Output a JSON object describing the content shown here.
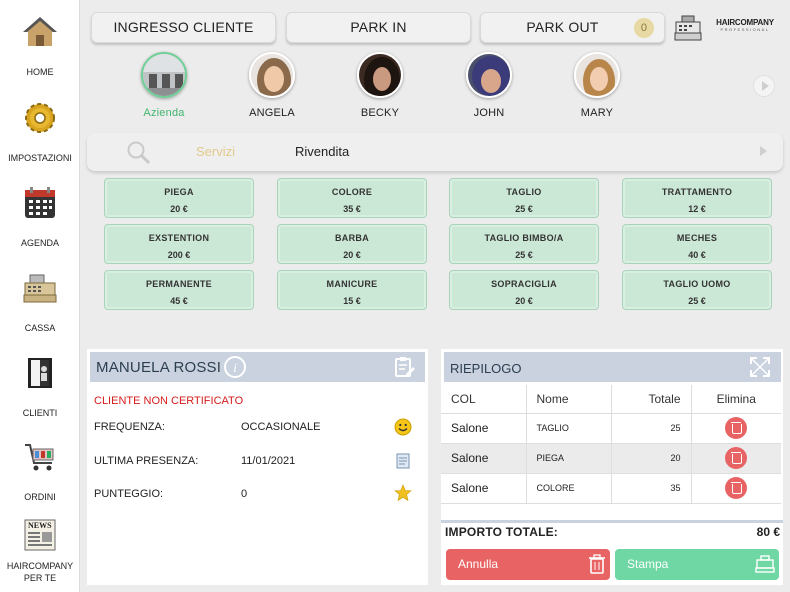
{
  "sidebar": {
    "items": [
      {
        "label": "HOME",
        "icon": "house-icon"
      },
      {
        "label": "IMPOSTAZIONI",
        "icon": "gear-icon"
      },
      {
        "label": "AGENDA",
        "icon": "calendar-icon"
      },
      {
        "label": "CASSA",
        "icon": "cash-register-icon"
      },
      {
        "label": "CLIENTI",
        "icon": "address-book-icon"
      },
      {
        "label": "ORDINI",
        "icon": "shopping-cart-icon"
      },
      {
        "label": "HAIRCOMPANY PER TE",
        "icon": "newspaper-icon"
      }
    ]
  },
  "top": {
    "ingresso_label": "INGRESSO CLIENTE",
    "park_in_label": "PARK IN",
    "park_out_label": "PARK OUT",
    "park_out_count": "0",
    "brand_name": "HAIRCOMPANY",
    "brand_sub": "PROFESSIONAL"
  },
  "staff": [
    {
      "name": "Azienda",
      "active": true
    },
    {
      "name": "ANGELA"
    },
    {
      "name": "BECKY"
    },
    {
      "name": "JOHN"
    },
    {
      "name": "MARY"
    }
  ],
  "categories": {
    "services_tab": "Servizi",
    "resale_tab": "Rivendita"
  },
  "services": [
    {
      "name": "PIEGA",
      "price": "20 €"
    },
    {
      "name": "COLORE",
      "price": "35 €"
    },
    {
      "name": "TAGLIO",
      "price": "25 €"
    },
    {
      "name": "TRATTAMENTO",
      "price": "12 €"
    },
    {
      "name": "EXSTENTION",
      "price": "200 €"
    },
    {
      "name": "BARBA",
      "price": "20 €"
    },
    {
      "name": "TAGLIO BIMBO/A",
      "price": "25 €"
    },
    {
      "name": "MECHES",
      "price": "40 €"
    },
    {
      "name": "PERMANENTE",
      "price": "45 €"
    },
    {
      "name": "MANICURE",
      "price": "15 €"
    },
    {
      "name": "SOPRACIGLIA",
      "price": "20 €"
    },
    {
      "name": "TAGLIO UOMO",
      "price": "25 €"
    }
  ],
  "client": {
    "name": "MANUELA ROSSI",
    "warning": "CLIENTE NON CERTIFICATO",
    "frequency_label": "FREQUENZA:",
    "frequency_value": "OCCASIONALE",
    "last_visit_label": "ULTIMA PRESENZA:",
    "last_visit_value": "11/01/2021",
    "score_label": "PUNTEGGIO:",
    "score_value": "0"
  },
  "summary": {
    "title": "RIEPILOGO",
    "columns": [
      "COL",
      "Nome",
      "Totale",
      "Elimina"
    ],
    "rows": [
      {
        "col": "Salone",
        "name": "TAGLIO",
        "total": "25"
      },
      {
        "col": "Salone",
        "name": "PIEGA",
        "total": "20"
      },
      {
        "col": "Salone",
        "name": "COLORE",
        "total": "35"
      }
    ],
    "total_label": "IMPORTO TOTALE:",
    "total_value": "80 €",
    "cancel_label": "Annulla",
    "print_label": "Stampa"
  },
  "colors": {
    "accent_green": "#3fb56e",
    "service_bg": "#cbe7d6",
    "panel_header": "#c9d2de",
    "cancel_red": "#e86464",
    "print_green": "#6ed7a4",
    "warning_red": "#d61b1b",
    "tab_highlight": "#e3c98a"
  }
}
